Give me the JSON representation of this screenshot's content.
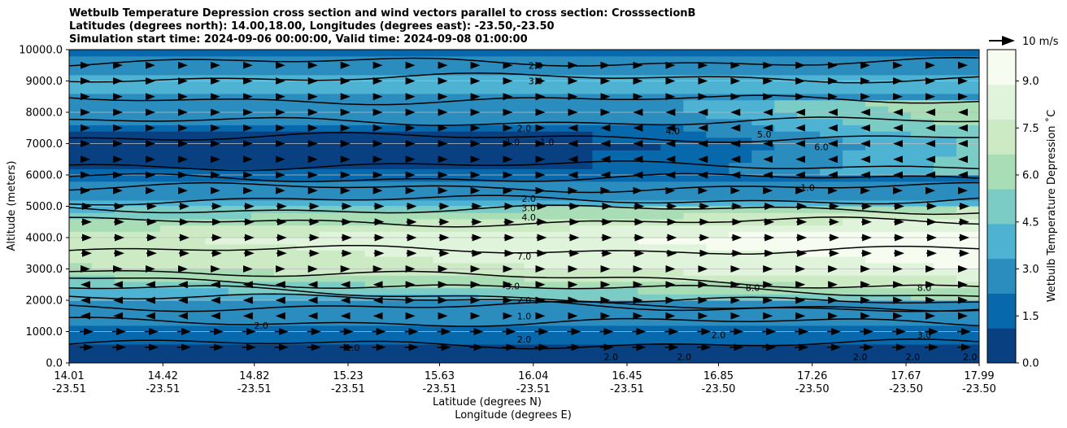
{
  "chart_data": {
    "type": "heatmap",
    "title_lines": [
      "Wetbulb Temperature Depression cross section and wind vectors parallel to cross section: CrosssectionB",
      "Latitudes (degrees north): 14.00,18.00, Longitudes (degrees east): -23.50,-23.50",
      "Simulation start time: 2024-09-06 00:00:00, Valid time: 2024-09-08 01:00:00"
    ],
    "xlabel_line1": "Latitude (degrees N)",
    "xlabel_line2": "Longitude (degrees E)",
    "ylabel": "Altitude (meters)",
    "ylim": [
      0,
      10000
    ],
    "x_ticks": [
      {
        "lat": "14.01",
        "lon": "-23.51"
      },
      {
        "lat": "14.42",
        "lon": "-23.51"
      },
      {
        "lat": "14.82",
        "lon": "-23.51"
      },
      {
        "lat": "15.23",
        "lon": "-23.51"
      },
      {
        "lat": "15.63",
        "lon": "-23.51"
      },
      {
        "lat": "16.04",
        "lon": "-23.51"
      },
      {
        "lat": "16.45",
        "lon": "-23.51"
      },
      {
        "lat": "16.85",
        "lon": "-23.50"
      },
      {
        "lat": "17.26",
        "lon": "-23.50"
      },
      {
        "lat": "17.67",
        "lon": "-23.50"
      },
      {
        "lat": "17.99",
        "lon": "-23.50"
      }
    ],
    "y_ticks": [
      "0.0",
      "1000.0",
      "2000.0",
      "3000.0",
      "4000.0",
      "5000.0",
      "6000.0",
      "7000.0",
      "8000.0",
      "9000.0",
      "10000.0"
    ],
    "colorbar": {
      "label": "Wetbulb Temperature Depression ˚C",
      "ticks": [
        "0.0",
        "1.5",
        "3.0",
        "4.5",
        "6.0",
        "7.5",
        "9.0"
      ],
      "range": [
        0,
        10
      ],
      "colors": [
        "#084081",
        "#0868ac",
        "#2b8cbe",
        "#4eb3d3",
        "#7bccc4",
        "#a8ddb5",
        "#ccebc5",
        "#e0f3db",
        "#f7fcf0"
      ]
    },
    "wind_reference": "10 m/s",
    "grid": "horizontal",
    "profile": [
      {
        "alt": 500,
        "value": 1.0
      },
      {
        "alt": 1000,
        "value": 2.0
      },
      {
        "alt": 2000,
        "value": 3.0
      },
      {
        "alt": 3000,
        "value": 6.5
      },
      {
        "alt": 4000,
        "value": 7.5
      },
      {
        "alt": 5000,
        "value": 4.0
      },
      {
        "alt": 6000,
        "value": 1.5
      },
      {
        "alt": 7000,
        "value": 1.0
      },
      {
        "alt": 8000,
        "value": 3.0
      },
      {
        "alt": 9000,
        "value": 3.5
      },
      {
        "alt": 10000,
        "value": 2.0
      }
    ],
    "contour_labels": [
      {
        "text": "2.0",
        "x": 16.05,
        "y": 9500
      },
      {
        "text": "3.0",
        "x": 16.05,
        "y": 9000
      },
      {
        "text": "2.0",
        "x": 16.0,
        "y": 7500
      },
      {
        "text": "1.0",
        "x": 15.95,
        "y": 7050
      },
      {
        "text": "1.0",
        "x": 16.1,
        "y": 7050
      },
      {
        "text": "2.0",
        "x": 16.02,
        "y": 5250
      },
      {
        "text": "3.0",
        "x": 16.02,
        "y": 4950
      },
      {
        "text": "4.0",
        "x": 16.02,
        "y": 4650
      },
      {
        "text": "7.0",
        "x": 16.0,
        "y": 3400
      },
      {
        "text": "5.0",
        "x": 15.95,
        "y": 2450
      },
      {
        "text": "2.0",
        "x": 16.0,
        "y": 2000
      },
      {
        "text": "1.0",
        "x": 16.0,
        "y": 1500
      },
      {
        "text": "2.0",
        "x": 16.0,
        "y": 750
      },
      {
        "text": "4.0",
        "x": 16.65,
        "y": 7400
      },
      {
        "text": "5.0",
        "x": 17.05,
        "y": 7300
      },
      {
        "text": "6.0",
        "x": 17.3,
        "y": 6900
      },
      {
        "text": "1.0",
        "x": 17.24,
        "y": 5600
      },
      {
        "text": "8.0",
        "x": 17.0,
        "y": 2400
      },
      {
        "text": "8.0",
        "x": 17.75,
        "y": 2400
      },
      {
        "text": "3.0",
        "x": 17.75,
        "y": 900
      },
      {
        "text": "2.0",
        "x": 16.85,
        "y": 900
      },
      {
        "text": "2.0",
        "x": 14.85,
        "y": 1200
      },
      {
        "text": "1.0",
        "x": 15.25,
        "y": 500
      },
      {
        "text": "2.0",
        "x": 16.38,
        "y": 200
      },
      {
        "text": "2.0",
        "x": 16.7,
        "y": 200
      },
      {
        "text": "2.0",
        "x": 17.47,
        "y": 200
      },
      {
        "text": "2.0",
        "x": 17.7,
        "y": 200
      },
      {
        "text": "2.0",
        "x": 17.95,
        "y": 200
      }
    ]
  }
}
